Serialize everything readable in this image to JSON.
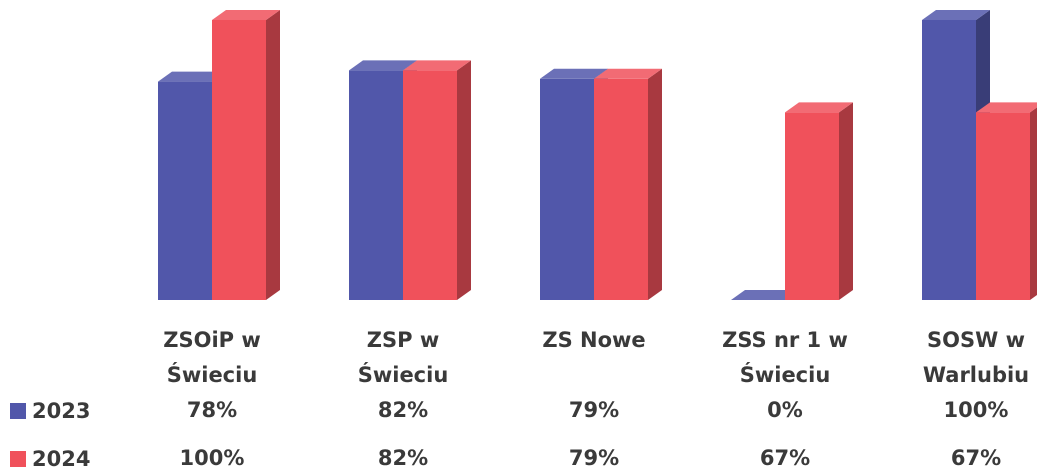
{
  "chart_data": {
    "type": "bar3d",
    "categories": [
      "ZSOiP w Świeciu",
      "ZSP w Świeciu",
      "ZS Nowe",
      "ZSS nr 1 w Świeciu",
      "SOSW w Warlubiu"
    ],
    "series": [
      {
        "name": "2023",
        "color": "#5157aa",
        "values": [
          78,
          82,
          79,
          0,
          100
        ],
        "value_labels": [
          "78%",
          "82%",
          "79%",
          "0%",
          "100%"
        ]
      },
      {
        "name": "2024",
        "color": "#f0515b",
        "values": [
          100,
          82,
          79,
          67,
          67
        ],
        "value_labels": [
          "100%",
          "82%",
          "79%",
          "67%",
          "67%"
        ]
      }
    ]
  }
}
